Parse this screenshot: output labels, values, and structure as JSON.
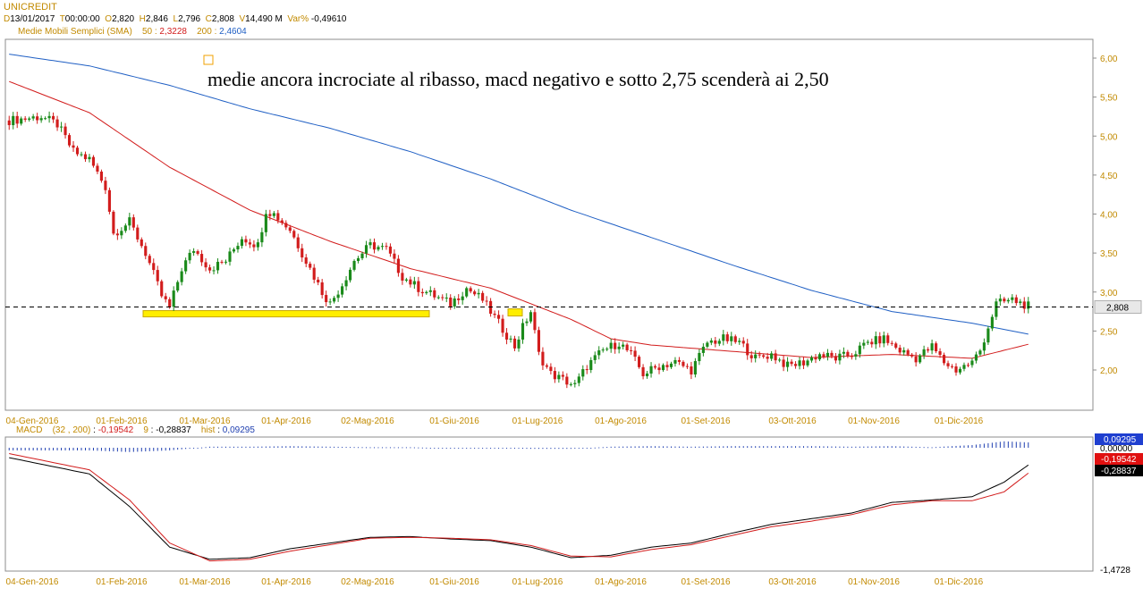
{
  "header": {
    "symbol": "UNICREDIT",
    "date_key": "D",
    "date": "13/01/2017",
    "time_key": "T",
    "time": "00:00:00",
    "open_key": "O",
    "open": "2,820",
    "high_key": "H",
    "high": "2,846",
    "low_key": "L",
    "low": "2,796",
    "close_key": "C",
    "close": "2,808",
    "volume_key": "V",
    "volume": "14,490 M",
    "var_key": "Var%",
    "var": "-0,49610"
  },
  "sma": {
    "label": "Medie Mobili Semplici (SMA)",
    "p50": "50",
    "v50": "2,3228",
    "p200": "200",
    "v200": "2,4604"
  },
  "annotation": {
    "text": "medie ancora incrociate al ribasso, macd negativo e sotto 2,75 scenderà ai 2,50"
  },
  "macd": {
    "label": "MACD",
    "params": "(32 , 200)",
    "value": "-0,19542",
    "signal_period": "9",
    "signal": "-0,28837",
    "hist_label": "hist",
    "hist": "0,09295",
    "axis_top": "0,00000",
    "axis_bottom": "-1,4728"
  },
  "colors": {
    "up": "#1a8a1a",
    "down": "#d21c1c",
    "sma50": "#d21c1c",
    "sma200": "#1f5fc4",
    "highlight": "#ffee00",
    "axis_label": "#c28a00",
    "hist": "#1f3fb0"
  },
  "chart_data": {
    "type": "candlestick",
    "y_ticks": [
      "6,00",
      "5,50",
      "5,00",
      "4,50",
      "4,00",
      "3,50",
      "3,00",
      "2,50",
      "2,00"
    ],
    "ylim": [
      1.6,
      6.2
    ],
    "last_price_label": "2,808",
    "last_price": 2.808,
    "support_level": 2.75,
    "x_ticks": [
      "04-Gen-2016",
      "01-Feb-2016",
      "01-Mar-2016",
      "01-Apr-2016",
      "02-Mag-2016",
      "01-Giu-2016",
      "01-Lug-2016",
      "01-Ago-2016",
      "01-Set-2016",
      "03-Ott-2016",
      "01-Nov-2016",
      "01-Dic-2016"
    ],
    "close_path": [
      [
        0,
        5.2
      ],
      [
        8,
        5.25
      ],
      [
        12,
        5.15
      ],
      [
        16,
        4.8
      ],
      [
        20,
        4.7
      ],
      [
        24,
        4.35
      ],
      [
        26,
        3.75
      ],
      [
        30,
        3.9
      ],
      [
        34,
        3.5
      ],
      [
        38,
        2.95
      ],
      [
        40,
        2.8
      ],
      [
        43,
        3.3
      ],
      [
        46,
        3.55
      ],
      [
        50,
        3.3
      ],
      [
        54,
        3.4
      ],
      [
        58,
        3.7
      ],
      [
        62,
        3.6
      ],
      [
        64,
        4.05
      ],
      [
        66,
        4.0
      ],
      [
        70,
        3.8
      ],
      [
        74,
        3.4
      ],
      [
        78,
        3.0
      ],
      [
        80,
        2.85
      ],
      [
        83,
        3.1
      ],
      [
        86,
        3.4
      ],
      [
        90,
        3.6
      ],
      [
        94,
        3.55
      ],
      [
        98,
        3.2
      ],
      [
        102,
        3.05
      ],
      [
        106,
        2.95
      ],
      [
        110,
        2.85
      ],
      [
        114,
        3.05
      ],
      [
        118,
        2.9
      ],
      [
        122,
        2.6
      ],
      [
        126,
        2.3
      ],
      [
        128,
        2.55
      ],
      [
        130,
        2.75
      ],
      [
        132,
        2.2
      ],
      [
        135,
        1.95
      ],
      [
        139,
        1.85
      ],
      [
        141,
        1.8
      ],
      [
        144,
        2.05
      ],
      [
        148,
        2.25
      ],
      [
        152,
        2.35
      ],
      [
        155,
        2.2
      ],
      [
        158,
        1.95
      ],
      [
        162,
        2.05
      ],
      [
        166,
        2.1
      ],
      [
        170,
        2.0
      ],
      [
        174,
        2.35
      ],
      [
        178,
        2.4
      ],
      [
        182,
        2.35
      ],
      [
        186,
        2.15
      ],
      [
        190,
        2.2
      ],
      [
        194,
        2.05
      ],
      [
        198,
        2.1
      ],
      [
        202,
        2.2
      ],
      [
        206,
        2.15
      ],
      [
        210,
        2.2
      ],
      [
        214,
        2.35
      ],
      [
        218,
        2.4
      ],
      [
        222,
        2.25
      ],
      [
        226,
        2.15
      ],
      [
        230,
        2.3
      ],
      [
        233,
        2.1
      ],
      [
        236,
        2.0
      ],
      [
        240,
        2.1
      ],
      [
        242,
        2.25
      ],
      [
        244,
        2.55
      ],
      [
        246,
        2.85
      ],
      [
        250,
        2.9
      ],
      [
        254,
        2.82
      ]
    ],
    "sma50_path": [
      [
        0,
        5.7
      ],
      [
        20,
        5.3
      ],
      [
        40,
        4.6
      ],
      [
        60,
        4.05
      ],
      [
        80,
        3.65
      ],
      [
        100,
        3.3
      ],
      [
        120,
        3.05
      ],
      [
        140,
        2.65
      ],
      [
        150,
        2.4
      ],
      [
        160,
        2.32
      ],
      [
        180,
        2.24
      ],
      [
        200,
        2.16
      ],
      [
        220,
        2.2
      ],
      [
        240,
        2.15
      ],
      [
        254,
        2.33
      ]
    ],
    "sma200_path": [
      [
        0,
        6.05
      ],
      [
        20,
        5.9
      ],
      [
        40,
        5.65
      ],
      [
        60,
        5.35
      ],
      [
        80,
        5.1
      ],
      [
        100,
        4.8
      ],
      [
        120,
        4.45
      ],
      [
        140,
        4.05
      ],
      [
        160,
        3.7
      ],
      [
        180,
        3.35
      ],
      [
        200,
        3.02
      ],
      [
        220,
        2.75
      ],
      [
        240,
        2.6
      ],
      [
        254,
        2.46
      ]
    ],
    "macd_ylim": [
      -1.4728,
      0.0
    ],
    "macd_series": [
      {
        "name": "MACD",
        "values": [
          [
            0,
            -0.1
          ],
          [
            20,
            -0.3
          ],
          [
            30,
            -0.7
          ],
          [
            40,
            -1.2
          ],
          [
            50,
            -1.35
          ],
          [
            60,
            -1.33
          ],
          [
            70,
            -1.22
          ],
          [
            80,
            -1.15
          ],
          [
            90,
            -1.08
          ],
          [
            100,
            -1.07
          ],
          [
            110,
            -1.1
          ],
          [
            120,
            -1.12
          ],
          [
            130,
            -1.2
          ],
          [
            140,
            -1.33
          ],
          [
            150,
            -1.3
          ],
          [
            160,
            -1.2
          ],
          [
            170,
            -1.15
          ],
          [
            180,
            -1.03
          ],
          [
            190,
            -0.92
          ],
          [
            200,
            -0.85
          ],
          [
            210,
            -0.78
          ],
          [
            220,
            -0.65
          ],
          [
            230,
            -0.62
          ],
          [
            240,
            -0.58
          ],
          [
            248,
            -0.4
          ],
          [
            254,
            -0.19
          ]
        ]
      },
      {
        "name": "Signal",
        "values": [
          [
            0,
            -0.05
          ],
          [
            20,
            -0.25
          ],
          [
            30,
            -0.62
          ],
          [
            40,
            -1.15
          ],
          [
            50,
            -1.37
          ],
          [
            60,
            -1.35
          ],
          [
            70,
            -1.25
          ],
          [
            80,
            -1.17
          ],
          [
            90,
            -1.09
          ],
          [
            100,
            -1.08
          ],
          [
            110,
            -1.09
          ],
          [
            120,
            -1.11
          ],
          [
            130,
            -1.18
          ],
          [
            140,
            -1.31
          ],
          [
            150,
            -1.32
          ],
          [
            160,
            -1.23
          ],
          [
            170,
            -1.17
          ],
          [
            180,
            -1.06
          ],
          [
            190,
            -0.95
          ],
          [
            200,
            -0.88
          ],
          [
            210,
            -0.8
          ],
          [
            220,
            -0.68
          ],
          [
            230,
            -0.63
          ],
          [
            240,
            -0.63
          ],
          [
            248,
            -0.52
          ],
          [
            254,
            -0.29
          ]
        ]
      }
    ],
    "hist_value": 0.09295
  }
}
